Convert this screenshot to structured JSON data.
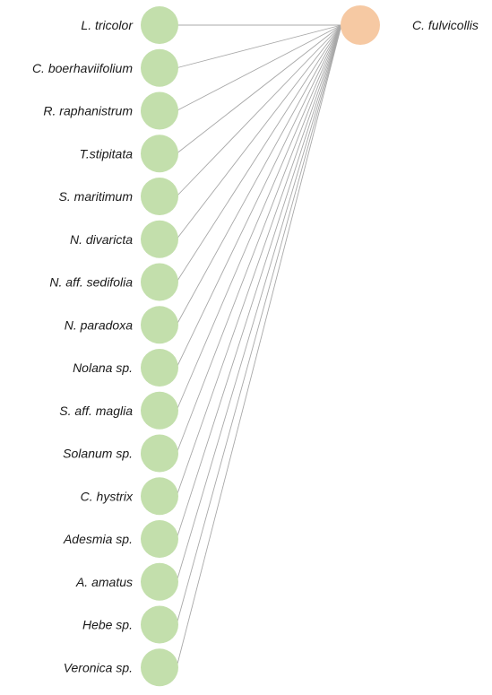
{
  "network": {
    "insect": {
      "label": "C. fulvicollis",
      "color": "#f6c9a3"
    },
    "plant_color": "#c3dfac",
    "edge_color": "#a8a8a8",
    "plants": [
      "L. tricolor",
      "C. boerhaviifolium",
      "R. raphanistrum",
      "T.stipitata",
      "S. maritimum",
      "N. divaricta",
      "N. aff. sedifolia",
      "N. paradoxa",
      "Nolana sp.",
      "S. aff. maglia",
      "Solanum sp.",
      "C. hystrix",
      "Adesmia sp.",
      "A. amatus",
      "Hebe sp.",
      "Veronica sp."
    ]
  }
}
